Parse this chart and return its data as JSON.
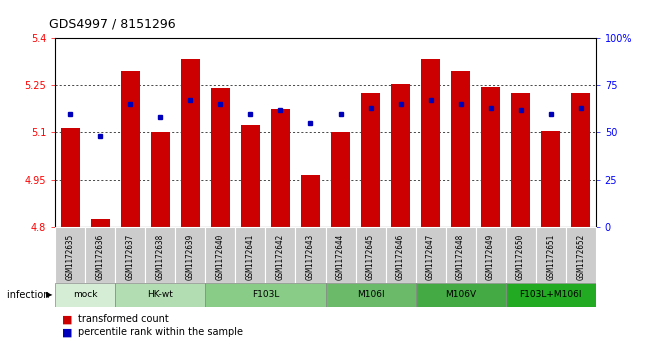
{
  "title": "GDS4997 / 8151296",
  "samples": [
    "GSM1172635",
    "GSM1172636",
    "GSM1172637",
    "GSM1172638",
    "GSM1172639",
    "GSM1172640",
    "GSM1172641",
    "GSM1172642",
    "GSM1172643",
    "GSM1172644",
    "GSM1172645",
    "GSM1172646",
    "GSM1172647",
    "GSM1172648",
    "GSM1172649",
    "GSM1172650",
    "GSM1172651",
    "GSM1172652"
  ],
  "bar_values": [
    5.115,
    4.825,
    5.295,
    5.1,
    5.335,
    5.24,
    5.125,
    5.175,
    4.965,
    5.1,
    5.225,
    5.255,
    5.335,
    5.295,
    5.245,
    5.225,
    5.105,
    5.225
  ],
  "percentile_values": [
    60,
    48,
    65,
    58,
    67,
    65,
    60,
    62,
    55,
    60,
    63,
    65,
    67,
    65,
    63,
    62,
    60,
    63
  ],
  "ymin": 4.8,
  "ymax": 5.4,
  "yticks": [
    4.8,
    4.95,
    5.1,
    5.25,
    5.4
  ],
  "ytick_labels": [
    "4.8",
    "4.95",
    "5.1",
    "5.25",
    "5.4"
  ],
  "right_yticks": [
    0,
    25,
    50,
    75,
    100
  ],
  "right_yticklabels": [
    "0",
    "25",
    "50",
    "75",
    "100%"
  ],
  "bar_color": "#CC0000",
  "dot_color": "#0000BB",
  "bar_bottom": 4.8,
  "infection_groups": [
    {
      "label": "mock",
      "start": 0,
      "end": 1,
      "color": "#d5edd5"
    },
    {
      "label": "HK-wt",
      "start": 2,
      "end": 4,
      "color": "#b2ddb2"
    },
    {
      "label": "F103L",
      "start": 5,
      "end": 8,
      "color": "#88cc88"
    },
    {
      "label": "M106I",
      "start": 9,
      "end": 11,
      "color": "#6aba6a"
    },
    {
      "label": "M106V",
      "start": 12,
      "end": 14,
      "color": "#44aa44"
    },
    {
      "label": "F103L+M106I",
      "start": 15,
      "end": 17,
      "color": "#22aa22"
    }
  ],
  "legend_items": [
    {
      "color": "#CC0000",
      "label": "transformed count"
    },
    {
      "color": "#0000BB",
      "label": "percentile rank within the sample"
    }
  ]
}
